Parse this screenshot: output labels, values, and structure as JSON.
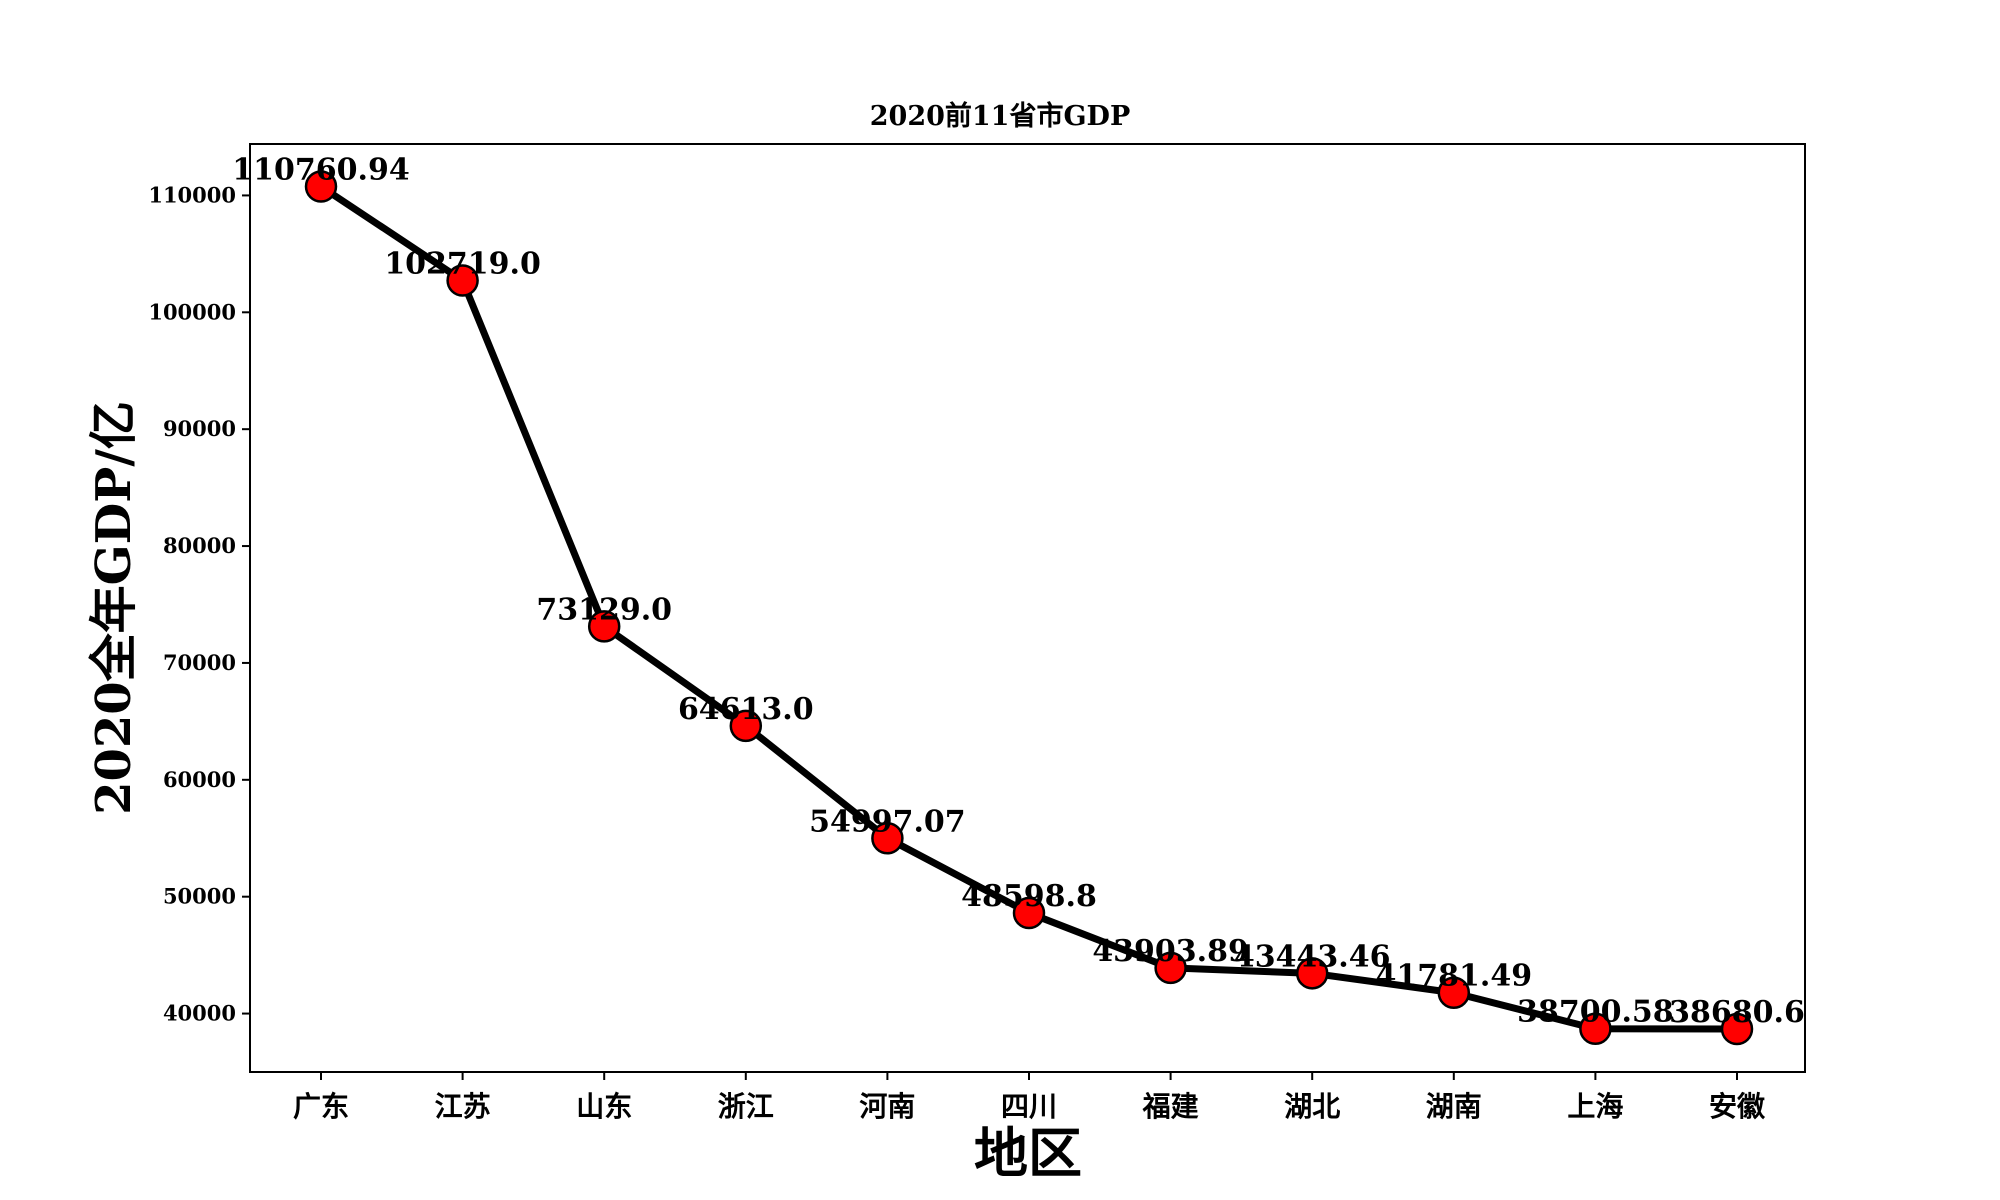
{
  "chart_data": {
    "type": "line",
    "title": "2020前11省市GDP",
    "xlabel": "地区",
    "ylabel": "2020全年GDP/亿",
    "categories": [
      "广东",
      "江苏",
      "山东",
      "浙江",
      "河南",
      "四川",
      "福建",
      "湖北",
      "湖南",
      "上海",
      "安徽"
    ],
    "series": [
      {
        "values": [
          110760.94,
          102719.0,
          73129.0,
          64613.0,
          54997.07,
          48598.8,
          43903.89,
          43443.46,
          41781.49,
          38700.58,
          38680.6
        ]
      }
    ],
    "data_labels": [
      "110760.94",
      "102719.0",
      "73129.0",
      "64613.0",
      "54997.07",
      "48598.8",
      "43903.89",
      "43443.46",
      "41781.49",
      "38700.58",
      "38680.6"
    ],
    "yticks": [
      40000,
      50000,
      60000,
      70000,
      80000,
      90000,
      100000,
      110000
    ],
    "ytick_labels": [
      "40000",
      "50000",
      "60000",
      "70000",
      "80000",
      "90000",
      "100000",
      "110000"
    ],
    "ylim": [
      35000,
      114400
    ],
    "grid": false,
    "line_color": "#000000",
    "marker_fill": "#ff0000",
    "marker_edge": "#000000"
  }
}
